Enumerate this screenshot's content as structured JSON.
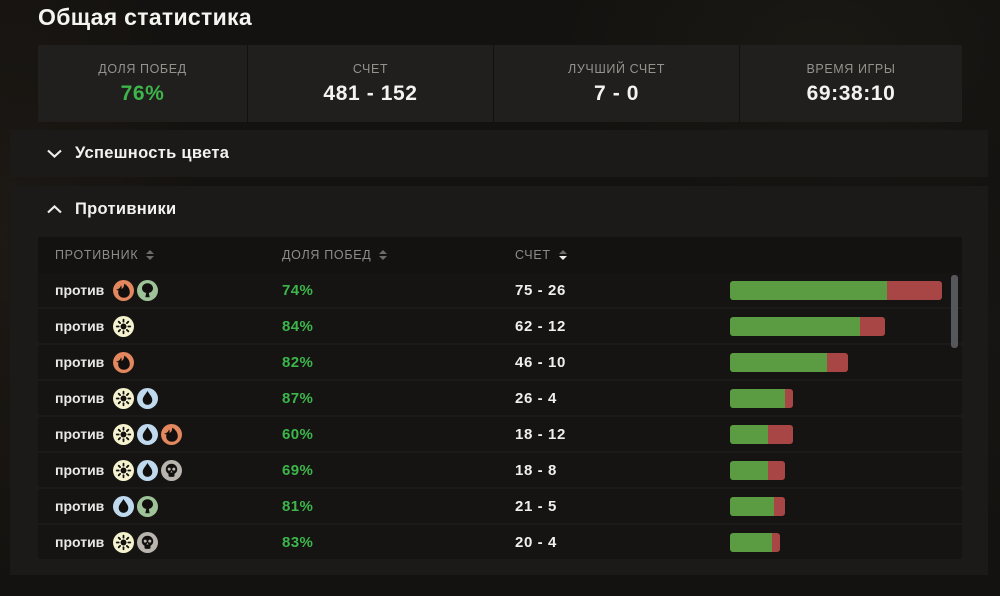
{
  "page_title": "Общая статистика",
  "summary_cards": [
    {
      "label": "ДОЛЯ ПОБЕД",
      "value": "76%",
      "accent": true
    },
    {
      "label": "СЧЕТ",
      "value": "481 - 152",
      "accent": false
    },
    {
      "label": "ЛУЧШИЙ СЧЕТ",
      "value": "7 - 0",
      "accent": false
    },
    {
      "label": "ВРЕМЯ ИГРЫ",
      "value": "69:38:10",
      "accent": false
    }
  ],
  "sections": {
    "color_success": {
      "label": "Успешность цвета",
      "state": "collapsed"
    },
    "opponents": {
      "label": "Противники",
      "state": "expanded"
    }
  },
  "opponents_table": {
    "columns": [
      {
        "label": "ПРОТИВНИК",
        "sort": "none"
      },
      {
        "label": "ДОЛЯ ПОБЕД",
        "sort": "none"
      },
      {
        "label": "СЧЕТ",
        "sort": "desc"
      }
    ],
    "row_prefix": "против",
    "rows": [
      {
        "colors": [
          "red",
          "green"
        ],
        "winrate": "74%",
        "score": "75 - 26",
        "wins": 75,
        "losses": 26
      },
      {
        "colors": [
          "white"
        ],
        "winrate": "84%",
        "score": "62 - 12",
        "wins": 62,
        "losses": 12
      },
      {
        "colors": [
          "red"
        ],
        "winrate": "82%",
        "score": "46 - 10",
        "wins": 46,
        "losses": 10
      },
      {
        "colors": [
          "white",
          "blue"
        ],
        "winrate": "87%",
        "score": "26 - 4",
        "wins": 26,
        "losses": 4
      },
      {
        "colors": [
          "white",
          "blue",
          "red"
        ],
        "winrate": "60%",
        "score": "18 - 12",
        "wins": 18,
        "losses": 12
      },
      {
        "colors": [
          "white",
          "blue",
          "black"
        ],
        "winrate": "69%",
        "score": "18 - 8",
        "wins": 18,
        "losses": 8
      },
      {
        "colors": [
          "blue",
          "green"
        ],
        "winrate": "81%",
        "score": "21 - 5",
        "wins": 21,
        "losses": 5
      },
      {
        "colors": [
          "white",
          "black"
        ],
        "winrate": "83%",
        "score": "20 - 4",
        "wins": 20,
        "losses": 4
      }
    ]
  },
  "colors": {
    "accent_green": "#3CB54A",
    "bar_win": "#5B9C42",
    "bar_loss": "#A84646",
    "glyph_ink": "#12100E",
    "mana": {
      "white": "#F5F2CF",
      "blue": "#BFD9EE",
      "black": "#B9B4AE",
      "red": "#E2875E",
      "green": "#9FC398"
    }
  }
}
